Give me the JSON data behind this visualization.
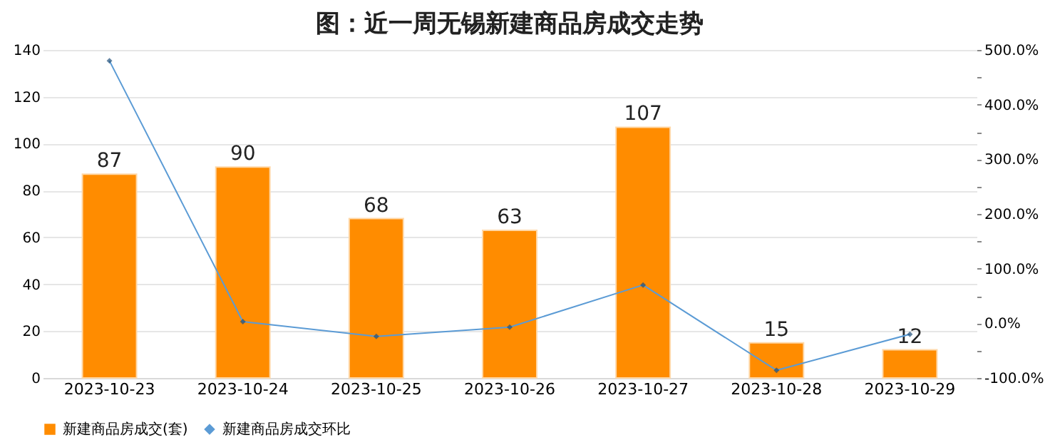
{
  "chart_data": {
    "type": "bar",
    "title": "图：近一周无锡新建商品房成交走势",
    "categories": [
      "2023-10-23",
      "2023-10-24",
      "2023-10-25",
      "2023-10-26",
      "2023-10-27",
      "2023-10-28",
      "2023-10-29"
    ],
    "series": [
      {
        "name": "新建商品房成交(套)",
        "color": "#ff8c00",
        "values": [
          87,
          90,
          68,
          63,
          107,
          15,
          12
        ],
        "value_labels": [
          "87",
          "90",
          "68",
          "63",
          "107",
          "15",
          "12"
        ]
      },
      {
        "name": "新建商品房成交环比",
        "type": "line",
        "axis": "y2",
        "color": "#5b9bd5",
        "marker": "diamond",
        "values": [
          480,
          3,
          -24,
          -7,
          70,
          -86,
          -20
        ]
      }
    ],
    "ylim": [
      0,
      140
    ],
    "yticks": [
      0,
      20,
      40,
      60,
      80,
      100,
      120,
      140
    ],
    "y2lim": [
      -100,
      500
    ],
    "y2ticks": [
      {
        "value": -100,
        "label": "-100.0%"
      },
      {
        "value": -50,
        "label": null
      },
      {
        "value": 0,
        "label": "0.0%"
      },
      {
        "value": 50,
        "label": null
      },
      {
        "value": 100,
        "label": "100.0%"
      },
      {
        "value": 150,
        "label": null
      },
      {
        "value": 200,
        "label": "200.0%"
      },
      {
        "value": 250,
        "label": null
      },
      {
        "value": 300,
        "label": "300.0%"
      },
      {
        "value": 350,
        "label": null
      },
      {
        "value": 400,
        "label": "400.0%"
      },
      {
        "value": 450,
        "label": null
      },
      {
        "value": 500,
        "label": "500.0%"
      }
    ],
    "grid": "y",
    "legend": "bottom"
  }
}
